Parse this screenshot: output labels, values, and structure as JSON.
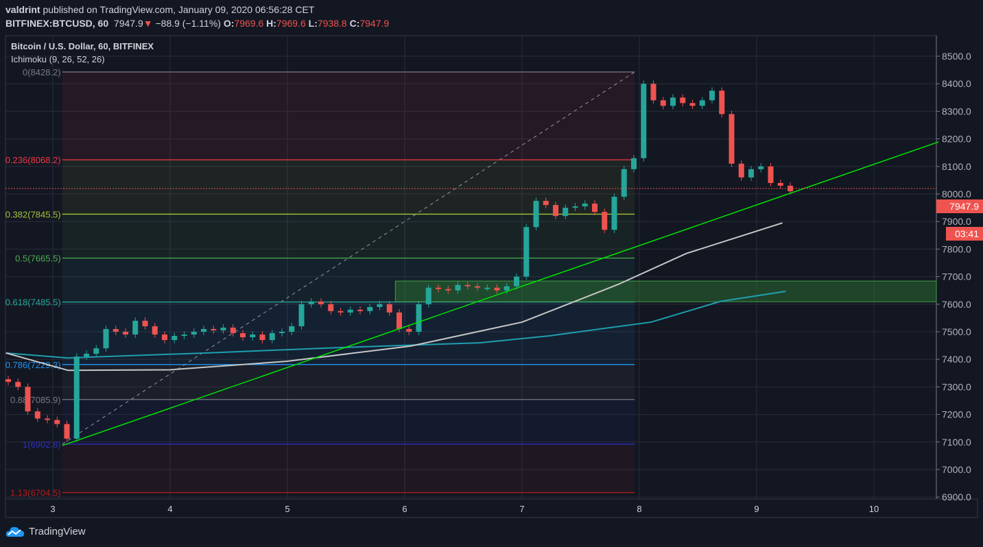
{
  "header": {
    "author": "valdrint",
    "published": "published on TradingView.com, January 09, 2020 06:56:28 CET",
    "symbol": "BITFINEX:BTCUSD, 60",
    "last": "7947.9",
    "change": "−88.9 (−1.11%)",
    "o_label": "O:",
    "o": "7969.6",
    "h_label": "H:",
    "h": "7969.6",
    "l_label": "L:",
    "l": "7938.8",
    "c_label": "C:",
    "c": "7947.9"
  },
  "legend": {
    "title": "Bitcoin / U.S. Dollar, 60, BITFINEX",
    "indicator": "Ichimoku (9, 26, 52, 26)"
  },
  "footer": {
    "brand": "TradingView"
  },
  "chart_data": {
    "type": "candlestick",
    "colors": {
      "up": "#26a69a",
      "down": "#ef5350",
      "trendline": "#00e600",
      "ichimoku_base": "#c8c8c8",
      "ichimoku_span": "#1e9fb0",
      "zone": "#2e7d32"
    },
    "price_axis": {
      "ticks": [
        6900,
        7000,
        7100,
        7200,
        7300,
        7400,
        7500,
        7600,
        7700,
        7800,
        7900,
        8000,
        8100,
        8200,
        8300,
        8400,
        8500
      ],
      "last_price_label": "7947.9",
      "countdown_label": "03:41",
      "prev_close": 8020
    },
    "time_axis": {
      "ticks": [
        3,
        4,
        5,
        6,
        7,
        8,
        9,
        10
      ]
    },
    "candles": {
      "start_day": 2.62,
      "step_hours": 2,
      "closes": [
        7318,
        7300,
        7211,
        7185,
        7180,
        7165,
        7112,
        7410,
        7420,
        7440,
        7510,
        7500,
        7490,
        7540,
        7520,
        7490,
        7470,
        7485,
        7490,
        7500,
        7510,
        7505,
        7515,
        7495,
        7480,
        7490,
        7470,
        7495,
        7500,
        7520,
        7600,
        7610,
        7600,
        7575,
        7570,
        7580,
        7575,
        7590,
        7600,
        7570,
        7510,
        7500,
        7600,
        7660,
        7655,
        7650,
        7670,
        7665,
        7660,
        7660,
        7650,
        7665,
        7700,
        7880,
        7975,
        7960,
        7920,
        7950,
        7955,
        7965,
        7935,
        7870,
        7990,
        8090,
        8130,
        8400,
        8340,
        8320,
        8350,
        8330,
        8320,
        8340,
        8375,
        8290,
        8110,
        8060,
        8090,
        8100,
        8040,
        8030,
        8010
      ]
    },
    "ichimoku_base": [
      [
        2.6,
        7423
      ],
      [
        3.13,
        7360
      ],
      [
        4.0,
        7362
      ],
      [
        5.0,
        7393
      ],
      [
        6.05,
        7448
      ],
      [
        7.0,
        7535
      ],
      [
        7.82,
        7672
      ],
      [
        8.4,
        7784
      ],
      [
        9.22,
        7895
      ]
    ],
    "ichimoku_span": [
      [
        2.6,
        7423
      ],
      [
        3.13,
        7405
      ],
      [
        4.3,
        7423
      ],
      [
        5.47,
        7443
      ],
      [
        6.64,
        7460
      ],
      [
        7.23,
        7485
      ],
      [
        8.1,
        7535
      ],
      [
        8.69,
        7610
      ],
      [
        9.25,
        7647
      ]
    ],
    "trendline": [
      [
        3.08,
        7087
      ],
      [
        10.55,
        8189
      ]
    ],
    "fib_diagonal": [
      [
        3.08,
        6902.8
      ],
      [
        7.96,
        8428.2
      ]
    ],
    "fib_range": {
      "start_day": 3.08,
      "end_day": 7.96
    },
    "fib_levels": [
      {
        "ratio": 0,
        "label": "0(8428.2)",
        "color": "#787b86"
      },
      {
        "ratio": 0.236,
        "label": "0.236(8068.2)",
        "color": "#f23645"
      },
      {
        "ratio": 0.382,
        "label": "0.382(7845.5)",
        "color": "#a5c33a"
      },
      {
        "ratio": 0.5,
        "label": "0.5(7665.5)",
        "color": "#4caf50"
      },
      {
        "ratio": 0.618,
        "label": "0.618(7485.5)",
        "color": "#26a69a"
      },
      {
        "ratio": 0.786,
        "label": "0.786(7229.3)",
        "color": "#2196f3"
      },
      {
        "ratio": 0.88,
        "label": "0.88(7085.9)",
        "color": "#787b86"
      },
      {
        "ratio": 1,
        "label": "1(6902.8)",
        "color": "#3030c0"
      },
      {
        "ratio": 1.13,
        "label": "1.13(6704.5)",
        "color": "#b71c1c"
      }
    ],
    "zone": {
      "start_day": 5.92,
      "end_day": 10.55,
      "top": 7684,
      "bottom": 7609
    }
  }
}
